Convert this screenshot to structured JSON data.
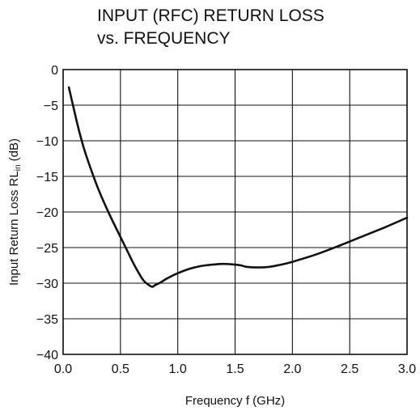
{
  "chart_data": {
    "type": "line",
    "title": [
      "INPUT (RFC) RETURN LOSS",
      "vs. FREQUENCY"
    ],
    "xlabel": "Frequency  f (GHz)",
    "ylabel": "Input Return Loss  RL",
    "ylabel_sub": "in",
    "ylabel_unit": " (dB)",
    "xlim": [
      0.0,
      3.0
    ],
    "ylim": [
      -40,
      0
    ],
    "x_ticks": [
      0.0,
      0.5,
      1.0,
      1.5,
      2.0,
      2.5,
      3.0
    ],
    "x_tick_labels": [
      "0.0",
      "0.5",
      "1.0",
      "1.5",
      "2.0",
      "2.5",
      "3.0"
    ],
    "y_ticks": [
      0,
      -5,
      -10,
      -15,
      -20,
      -25,
      -30,
      -35,
      -40
    ],
    "y_tick_labels": [
      "0",
      "−5",
      "−10",
      "−15",
      "−20",
      "−25",
      "−30",
      "−35",
      "−40"
    ],
    "grid": true,
    "series": [
      {
        "x": [
          0.05,
          0.1,
          0.15,
          0.2,
          0.3,
          0.4,
          0.5,
          0.6,
          0.65,
          0.7,
          0.75,
          0.78,
          0.8,
          0.85,
          0.9,
          1.0,
          1.1,
          1.2,
          1.3,
          1.4,
          1.5,
          1.55,
          1.6,
          1.7,
          1.8,
          1.9,
          2.0,
          2.2,
          2.4,
          2.6,
          2.8,
          3.0
        ],
        "y": [
          -2.5,
          -6.0,
          -9.3,
          -12.0,
          -16.5,
          -20.2,
          -23.5,
          -26.8,
          -28.3,
          -29.6,
          -30.3,
          -30.5,
          -30.3,
          -29.9,
          -29.4,
          -28.6,
          -28.0,
          -27.6,
          -27.4,
          -27.3,
          -27.4,
          -27.5,
          -27.7,
          -27.8,
          -27.7,
          -27.4,
          -27.0,
          -26.0,
          -24.8,
          -23.5,
          -22.2,
          -20.8
        ]
      }
    ]
  }
}
